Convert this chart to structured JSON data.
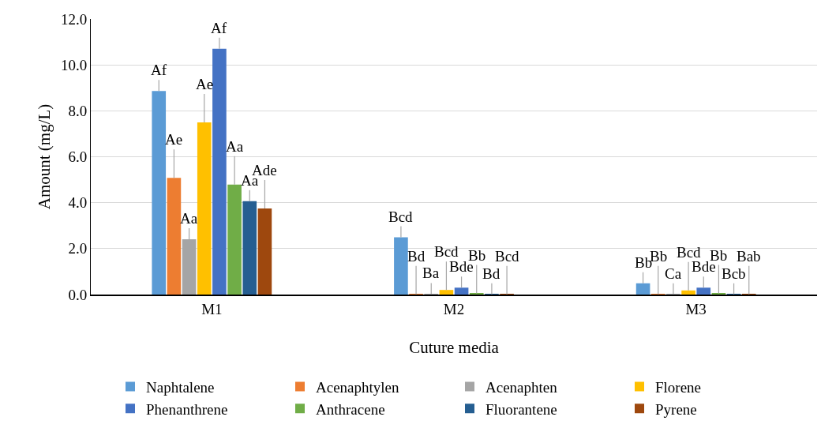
{
  "chart_data": {
    "type": "bar",
    "xlabel": "Cuture media",
    "ylabel": "Amount (mg/L)",
    "categories": [
      "M1",
      "M2",
      "M3"
    ],
    "series": [
      {
        "name": "Naphtalene",
        "color": "#5b9bd5",
        "values": [
          8.86,
          2.49,
          0.49
        ],
        "value_labels": [
          "Af",
          "Bcd",
          "Bb"
        ]
      },
      {
        "name": "Acenaphtylen",
        "color": "#ed7d31",
        "values": [
          5.08,
          0.01,
          0.01
        ],
        "value_labels": [
          "Ae",
          "Bd",
          "Bb"
        ]
      },
      {
        "name": "Acenaphten",
        "color": "#a5a5a5",
        "values": [
          2.41,
          0.02,
          0.01
        ],
        "value_labels": [
          "Aa",
          "Ba",
          "Ca"
        ]
      },
      {
        "name": "Florene",
        "color": "#ffc000",
        "values": [
          7.5,
          0.2,
          0.18
        ],
        "value_labels": [
          "Ae",
          "Bcd",
          "Bcd"
        ]
      },
      {
        "name": "Phenanthrene",
        "color": "#4472c4",
        "values": [
          10.7,
          0.3,
          0.3
        ],
        "value_labels": [
          "Af",
          "Bde",
          "Bde"
        ]
      },
      {
        "name": "Anthracene",
        "color": "#70ad47",
        "values": [
          4.79,
          0.05,
          0.05
        ],
        "value_labels": [
          "Aa",
          "Bb",
          "Bb"
        ]
      },
      {
        "name": "Fluorantene",
        "color": "#255e91",
        "values": [
          4.07,
          0.01,
          0.01
        ],
        "value_labels": [
          "Aa",
          "Bd",
          "Bcb"
        ]
      },
      {
        "name": "Pyrene",
        "color": "#9e480e",
        "values": [
          3.75,
          0.01,
          0.01
        ],
        "value_labels": [
          "Ade",
          "Bcd",
          "Bab"
        ]
      }
    ],
    "ylim": [
      0,
      12
    ],
    "yticks": [
      {
        "value": 0,
        "label": "0.0"
      },
      {
        "value": 2,
        "label": "2.0"
      },
      {
        "value": 4,
        "label": "4.0"
      },
      {
        "value": 6,
        "label": "6.0"
      },
      {
        "value": 8,
        "label": "8.0"
      },
      {
        "value": 10,
        "label": "10.0"
      },
      {
        "value": 12,
        "label": "12.0"
      }
    ],
    "grid": "y",
    "legend": "bottom"
  }
}
